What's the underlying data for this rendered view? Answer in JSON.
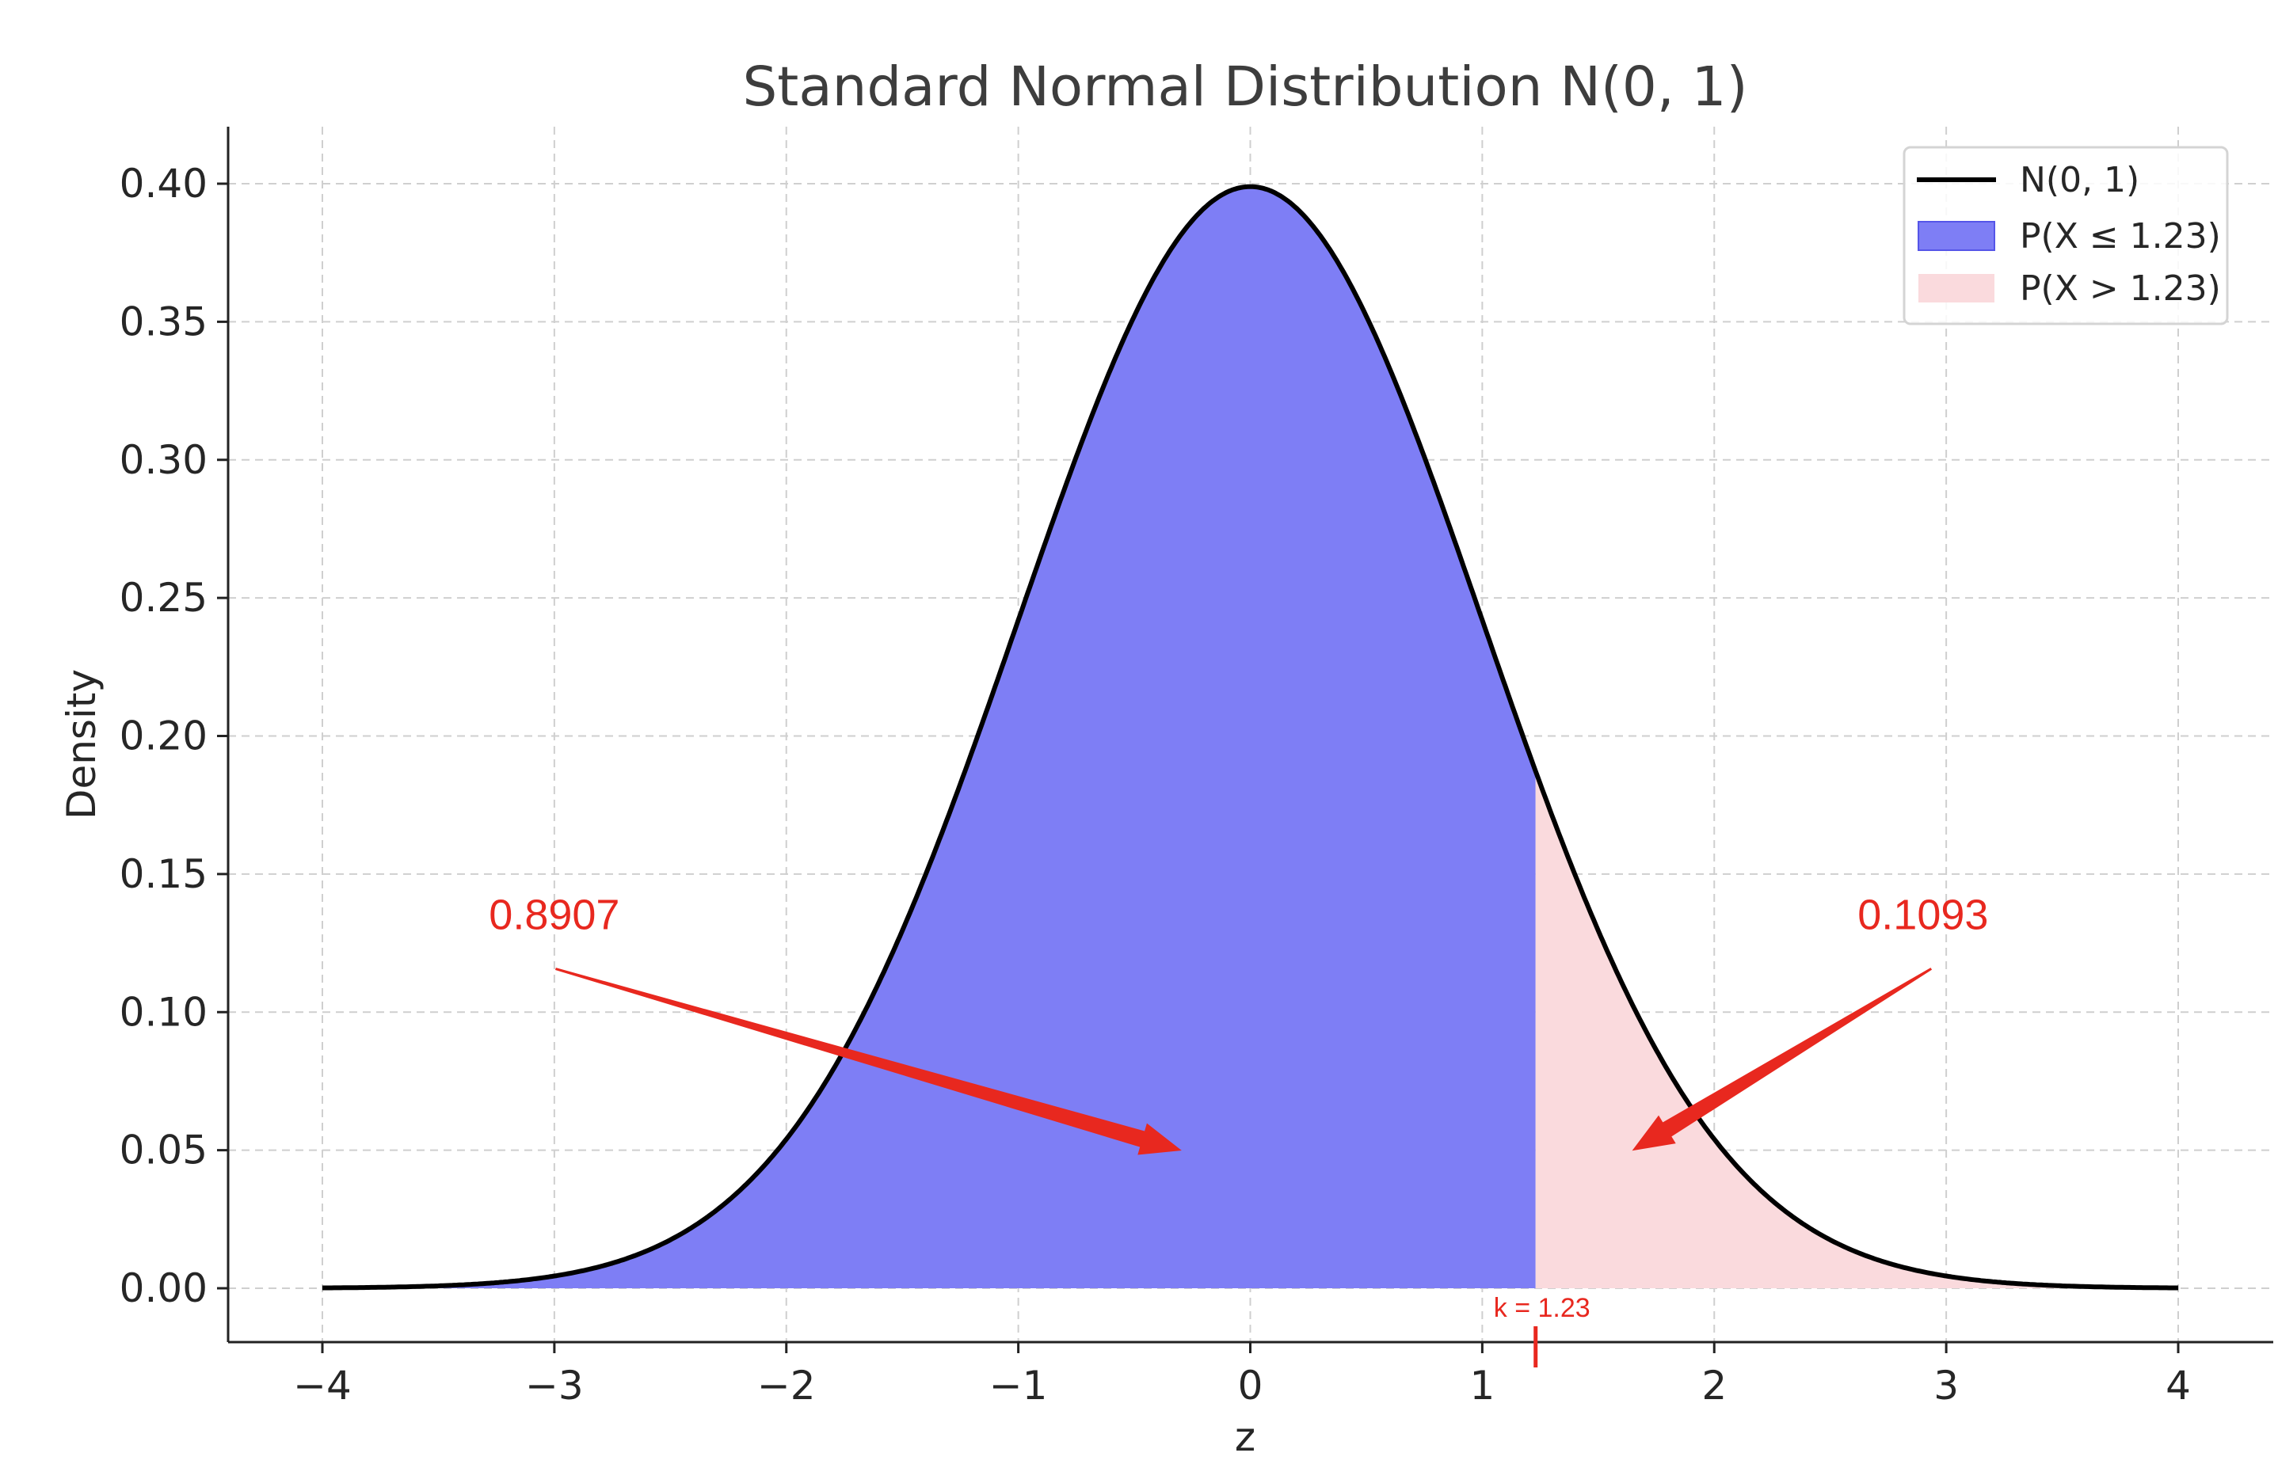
{
  "chart_data": {
    "type": "area",
    "title": "Standard Normal Distribution N(0, 1)",
    "xlabel": "z",
    "ylabel": "Density",
    "xlim": [
      -4,
      4
    ],
    "ylim": [
      -0.02,
      0.42
    ],
    "x_ticks": [
      -4,
      -3,
      -2,
      -1,
      0,
      1,
      2,
      3,
      4
    ],
    "x_tick_labels": [
      "−4",
      "−3",
      "−2",
      "−1",
      "0",
      "1",
      "2",
      "3",
      "4"
    ],
    "y_ticks": [
      0.0,
      0.05,
      0.1,
      0.15,
      0.2,
      0.25,
      0.3,
      0.35,
      0.4
    ],
    "y_tick_labels": [
      "0.00",
      "0.05",
      "0.10",
      "0.15",
      "0.20",
      "0.25",
      "0.30",
      "0.35",
      "0.40"
    ],
    "grid": true,
    "legend_position": "top-right",
    "curve": {
      "name": "N(0, 1)",
      "color": "#000000",
      "x": [
        -4.0,
        -3.5,
        -3.0,
        -2.5,
        -2.0,
        -1.5,
        -1.0,
        -0.5,
        0.0,
        0.5,
        1.0,
        1.23,
        1.5,
        2.0,
        2.5,
        3.0,
        3.5,
        4.0
      ],
      "y": [
        0.0001,
        0.0009,
        0.0044,
        0.0175,
        0.054,
        0.1295,
        0.242,
        0.3521,
        0.3989,
        0.3521,
        0.242,
        0.1872,
        0.1295,
        0.054,
        0.0175,
        0.0044,
        0.0009,
        0.0001
      ]
    },
    "series": [
      {
        "name": "P(X ≤ 1.23)",
        "color": "#7e7ef5",
        "x_range": [
          -4,
          1.23
        ]
      },
      {
        "name": "P(X > 1.23)",
        "color": "#fadadd",
        "x_range": [
          1.23,
          4
        ]
      }
    ],
    "annotations": [
      {
        "text": "0.8907",
        "x": -3.0,
        "y": 0.13,
        "arrow_to_x": -0.3,
        "arrow_to_y": 0.05
      },
      {
        "text": "0.1093",
        "x": 2.9,
        "y": 0.13,
        "arrow_to_x": 1.65,
        "arrow_to_y": 0.05
      }
    ],
    "k": {
      "value": 1.23,
      "label": "k = 1.23"
    },
    "annotation_color": "#e8281f"
  }
}
